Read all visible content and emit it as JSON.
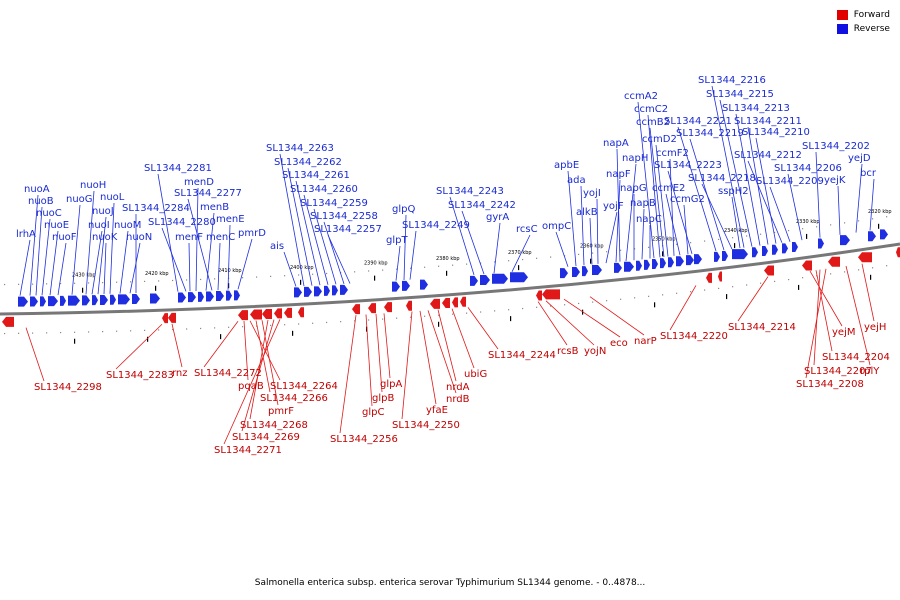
{
  "legend": [
    {
      "label": "Forward",
      "color": "#e00000"
    },
    {
      "label": "Reverse",
      "color": "#1010e0"
    }
  ],
  "caption": "Salmonella enterica subsp. enterica serovar Typhimurium SL1344 genome. - 0..4878...",
  "colors": {
    "forward": "#e01818",
    "reverse": "#1e2ee0",
    "forward_label": "#c00000",
    "reverse_label": "#1a2bd0",
    "backbone": "#777777"
  },
  "ticks": [
    "2430 kbp",
    "2420 kbp",
    "2410 kbp",
    "2400 kbp",
    "2390 kbp",
    "2380 kbp",
    "2370 kbp",
    "2360 kbp",
    "2350 kbp",
    "2340 kbp",
    "2330 kbp",
    "2320 kbp"
  ],
  "reverse_genes": [
    "lrhA",
    "nuoA",
    "nuoB",
    "nuoC",
    "nuoE",
    "nuoF",
    "nuoG",
    "nuoH",
    "nuoI",
    "nuoJ",
    "nuoK",
    "nuoL",
    "nuoM",
    "nuoN",
    "SL1344_2284",
    "SL1344_2281",
    "SL1344_2280",
    "menF",
    "menD",
    "menB",
    "SL1344_2277",
    "menC",
    "menE",
    "pmrD",
    "ais",
    "SL1344_2263",
    "SL1344_2262",
    "SL1344_2261",
    "SL1344_2260",
    "SL1344_2259",
    "SL1344_2258",
    "SL1344_2257",
    "glpT",
    "glpQ",
    "SL1344_2249",
    "SL1344_2243",
    "SL1344_2242",
    "gyrA",
    "rcsC",
    "ompC",
    "apbE",
    "ada",
    "alkB",
    "yojI",
    "yojF",
    "napF",
    "napA",
    "napH",
    "napG",
    "napB",
    "napC",
    "ccmA2",
    "ccmC2",
    "ccmB2",
    "ccmD2",
    "ccmF2",
    "ccmE2",
    "ccmG2",
    "SL1344_2223",
    "SL1344_2221",
    "SL1344_2219",
    "SL1344_2218",
    "sspH2",
    "SL1344_2216",
    "SL1344_2215",
    "SL1344_2213",
    "SL1344_2211",
    "SL1344_2210",
    "SL1344_2212",
    "SL1344_2209",
    "SL1344_2206",
    "SL1344_2202",
    "yejK",
    "yejD",
    "bcr"
  ],
  "forward_genes": [
    "SL1344_2298",
    "SL1344_2283",
    "rnz",
    "SL1344_2272",
    "pqaB",
    "SL1344_2264",
    "SL1344_2266",
    "pmrF",
    "SL1344_2268",
    "SL1344_2269",
    "SL1344_2271",
    "SL1344_2256",
    "glpC",
    "glpB",
    "glpA",
    "SL1344_2250",
    "yfaE",
    "nrdB",
    "nrdA",
    "ubiG",
    "SL1344_2244",
    "rcsB",
    "yojN",
    "eco",
    "narP",
    "SL1344_2220",
    "SL1344_2214",
    "yejM",
    "SL1344_2204",
    "SL1344_2207",
    "SL1344_2208",
    "rplY",
    "yejH"
  ]
}
